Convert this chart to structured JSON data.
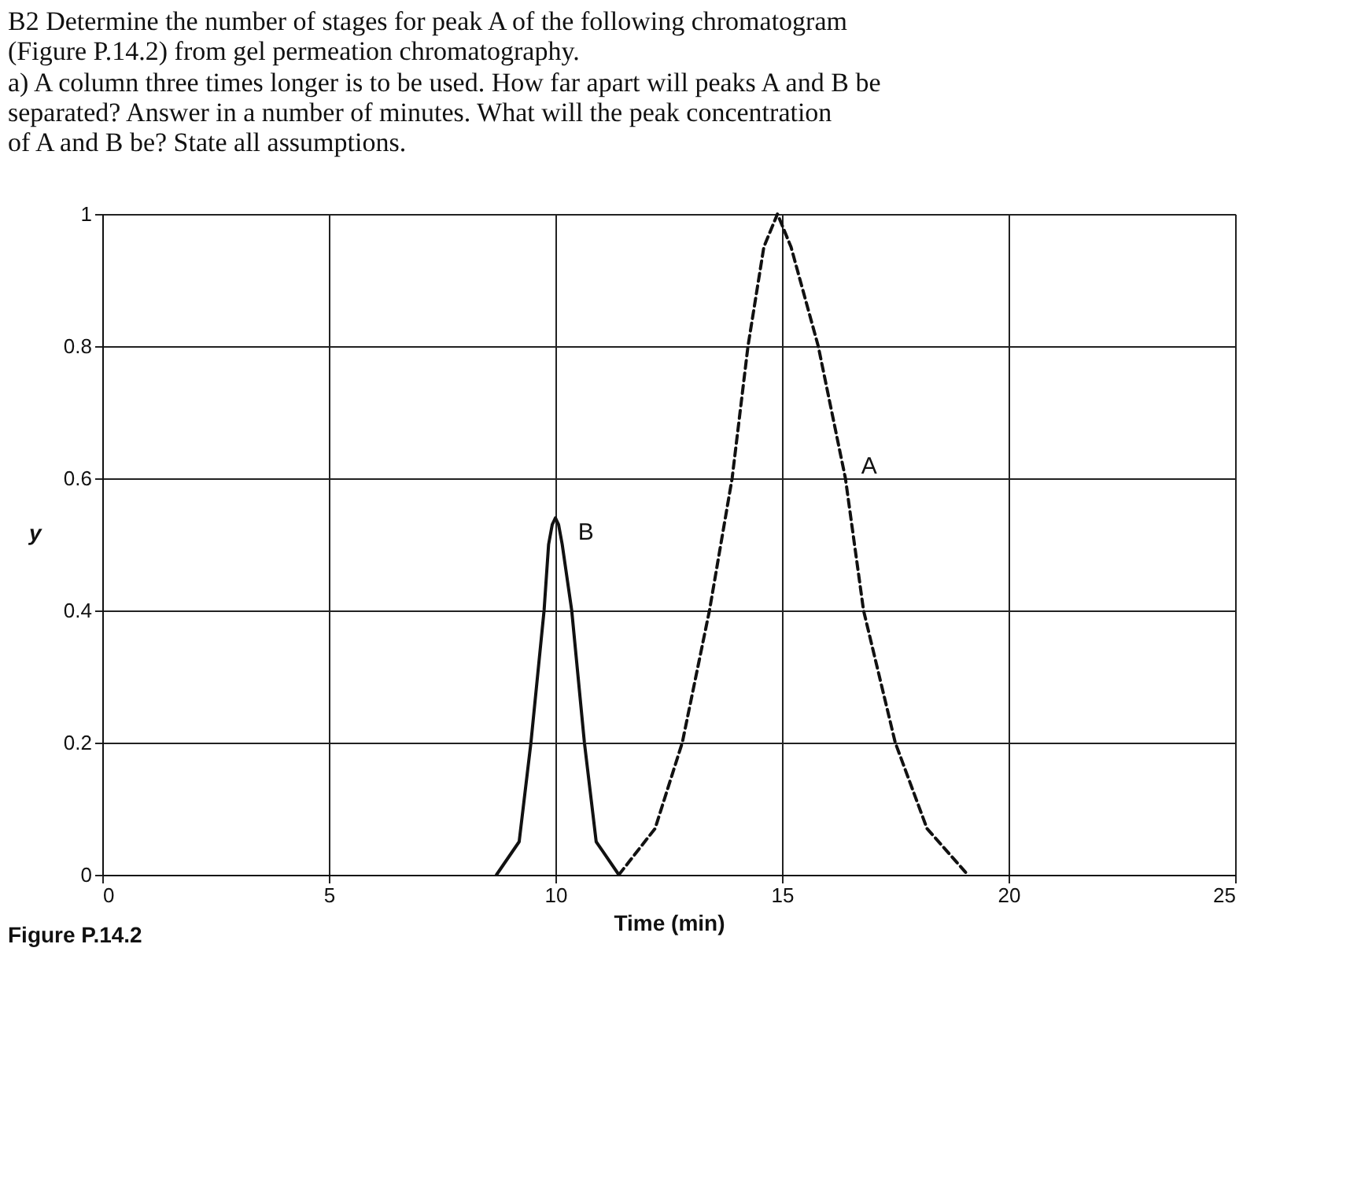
{
  "chart_data": {
    "type": "line",
    "title": "B2 Determine the number of stages for peak A of the following chromatogram\n(Figure P.14.2) from gel permeation chromatography.",
    "subtitle": "a) A column three times longer is to be used. How far apart will peaks A and B be\nseparated? Answer in a number of minutes. What will the peak concentration\nof A and B be? State all assumptions.",
    "xlabel": "Time (min)",
    "ylabel": "y",
    "annotations": [
      "Figure P.14.2"
    ],
    "series": [
      {
        "name": "B",
        "color": "#111111",
        "line_style": "solid",
        "x": [
          8.7,
          9.2,
          9.46,
          9.75,
          9.85,
          9.93,
          10,
          10.07,
          10.15,
          10.36,
          10.64,
          10.9,
          11.4
        ],
        "values": [
          0,
          0.05,
          0.2,
          0.4,
          0.5,
          0.53,
          0.54,
          0.53,
          0.5,
          0.4,
          0.2,
          0.05,
          0
        ]
      },
      {
        "name": "A",
        "color": "#111111",
        "line_style": "dashed",
        "x": [
          11.4,
          12.2,
          12.8,
          13.4,
          13.9,
          14.25,
          14.6,
          14.9,
          15.2,
          15.8,
          16.4,
          16.8,
          17.5,
          18.2,
          19.1
        ],
        "values": [
          0,
          0.07,
          0.2,
          0.4,
          0.6,
          0.8,
          0.95,
          1,
          0.95,
          0.8,
          0.6,
          0.4,
          0.2,
          0.07,
          0
        ]
      }
    ],
    "xlim": [
      0,
      25
    ],
    "xticks": [
      0,
      5,
      10,
      15,
      20,
      25
    ],
    "ylim": [
      0,
      1
    ],
    "yticks": [
      0,
      0.2,
      0.4,
      0.6,
      0.8,
      1
    ],
    "grid": true,
    "legend": false,
    "marker": "none"
  }
}
